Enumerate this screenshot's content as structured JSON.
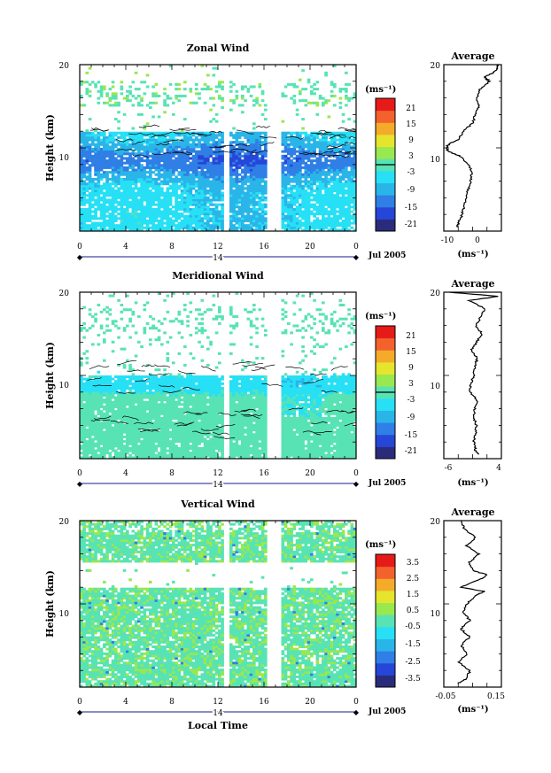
{
  "figure": {
    "xlabel": "Local Time",
    "date_label": "Jul 2005",
    "day_label": "14",
    "units": "(ms⁻¹)"
  },
  "chart_data": [
    {
      "type": "heatmap",
      "title": "Zonal Wind",
      "ylabel": "Height (km)",
      "xlabel": "",
      "x_ticks": [
        "0",
        "4",
        "8",
        "12",
        "16",
        "20",
        "0"
      ],
      "y_ticks": [
        "20",
        "10"
      ],
      "xlim": [
        0,
        24
      ],
      "ylim": [
        0,
        20
      ],
      "colorbar_label": "(ms⁻¹)",
      "colorbar_ticks": [
        "21",
        "15",
        "9",
        "3",
        "-3",
        "-9",
        "-15",
        "-21"
      ],
      "colorbar_range": [
        -24,
        24
      ],
      "data_gaps_hours": [
        [
          12.5,
          13.1
        ],
        [
          16.3,
          17.5
        ]
      ],
      "cloud_top_km": 12,
      "field_summary": "Mostly negative (westward) winds between about -3 and -15 ms-1 below 12 km, strongest near 8-9 km; sparse -3 to 3 ms-1 echoes between 15 and 18 km"
    },
    {
      "type": "line",
      "title": "Average",
      "xlabel": "(ms⁻¹)",
      "x_ticks": [
        "-10",
        "0"
      ],
      "y_ticks": [
        "20",
        "10"
      ],
      "xlim": [
        -10,
        5
      ],
      "ylim": [
        0,
        20
      ],
      "series": [
        {
          "height_km": [
            0.5,
            1,
            2,
            3,
            4,
            5,
            6,
            7,
            8,
            9,
            9.5,
            10,
            10.5,
            11,
            12,
            13,
            14,
            15,
            16,
            17,
            18,
            18.5,
            19,
            19.5,
            20
          ],
          "wind": [
            -6.5,
            -6.2,
            -5.2,
            -4.8,
            -4.2,
            -3.7,
            -3,
            -2.8,
            -3.5,
            -5.8,
            -8.5,
            -9.4,
            -8.6,
            -6.2,
            -4.8,
            -2.5,
            -1.8,
            -0.8,
            -1.4,
            -0.6,
            1.8,
            0.6,
            2.8,
            3.8,
            4.2
          ]
        }
      ]
    },
    {
      "type": "heatmap",
      "title": "Meridional Wind",
      "ylabel": "Height (km)",
      "xlabel": "",
      "x_ticks": [
        "0",
        "4",
        "8",
        "12",
        "16",
        "20",
        "0"
      ],
      "y_ticks": [
        "20",
        "10"
      ],
      "xlim": [
        0,
        24
      ],
      "ylim": [
        0,
        20
      ],
      "colorbar_label": "(ms⁻¹)",
      "colorbar_ticks": [
        "21",
        "15",
        "9",
        "3",
        "-3",
        "-9",
        "-15",
        "-21"
      ],
      "colorbar_range": [
        -24,
        24
      ],
      "data_gaps_hours": [
        [
          12.5,
          13.1
        ],
        [
          16.3,
          17.5
        ]
      ],
      "cloud_top_km": 12,
      "field_summary": "Weak meridional winds between -3 and 3 ms-1 below 10 km with -3 to -9 ms-1 regions near 8-10 km; sparse echoes between 15 and 18 km"
    },
    {
      "type": "line",
      "title": "Average",
      "xlabel": "(ms⁻¹)",
      "x_ticks": [
        "-6",
        "4"
      ],
      "y_ticks": [
        "20",
        "10"
      ],
      "xlim": [
        -6,
        4
      ],
      "ylim": [
        0,
        20
      ],
      "series": [
        {
          "height_km": [
            0.5,
            1,
            2,
            3,
            4,
            5,
            6,
            7,
            8,
            9,
            10,
            11,
            12,
            13,
            14,
            15,
            16,
            17,
            18,
            19,
            19.5,
            20
          ],
          "wind": [
            0.2,
            -0.5,
            -0.8,
            -0.5,
            -0.3,
            -0.8,
            -0.6,
            -0.2,
            -1.4,
            -1.3,
            -0.8,
            -0.6,
            -0.2,
            -1.2,
            -0.3,
            0.6,
            -0.4,
            0.4,
            1.2,
            -1.6,
            3.4,
            -5
          ]
        }
      ]
    },
    {
      "type": "heatmap",
      "title": "Vertical Wind",
      "ylabel": "Height (km)",
      "xlabel": "Local Time",
      "x_ticks": [
        "0",
        "4",
        "8",
        "12",
        "16",
        "20",
        "0"
      ],
      "y_ticks": [
        "20",
        "10"
      ],
      "xlim": [
        0,
        24
      ],
      "ylim": [
        0,
        20
      ],
      "colorbar_label": "(ms⁻¹)",
      "colorbar_ticks": [
        "3.5",
        "2.5",
        "1.5",
        "0.5",
        "-0.5",
        "-1.5",
        "-2.5",
        "-3.5"
      ],
      "colorbar_range": [
        -4,
        4
      ],
      "data_gaps_hours": [
        [
          12.5,
          13.1
        ],
        [
          16.3,
          17.5
        ]
      ],
      "cloud_top_km": 12,
      "field_summary": "Vertical wind mostly between -0.5 and 0.5 ms-1 at all heights, with a data gap between about 12 and 15 km"
    },
    {
      "type": "line",
      "title": "Average",
      "xlabel": "(ms⁻¹)",
      "x_ticks": [
        "-0.05",
        "0.15"
      ],
      "y_ticks": [
        "20",
        "10"
      ],
      "xlim": [
        -0.05,
        0.15
      ],
      "ylim": [
        0,
        20
      ],
      "series": [
        {
          "height_km": [
            0.5,
            1,
            2,
            3,
            4,
            5,
            6,
            7,
            8,
            9,
            10,
            11,
            11.5,
            12,
            13,
            13.5,
            14,
            15,
            16,
            17,
            18,
            19,
            20
          ],
          "wind": [
            0.0,
            0.03,
            0.04,
            0.0,
            0.03,
            0.01,
            0.04,
            0.01,
            0.04,
            0.02,
            0.03,
            0.06,
            0.09,
            0.01,
            0.08,
            0.1,
            0.05,
            0.04,
            0.07,
            0.03,
            0.06,
            0.02,
            0.01
          ]
        }
      ]
    }
  ],
  "colorscale": [
    "#2b2b7c",
    "#2646d9",
    "#2f7fe6",
    "#2ab5e8",
    "#27e0f5",
    "#58e3b4",
    "#98e84f",
    "#e6e52e",
    "#f5ab2a",
    "#f3612d",
    "#e61b18"
  ]
}
